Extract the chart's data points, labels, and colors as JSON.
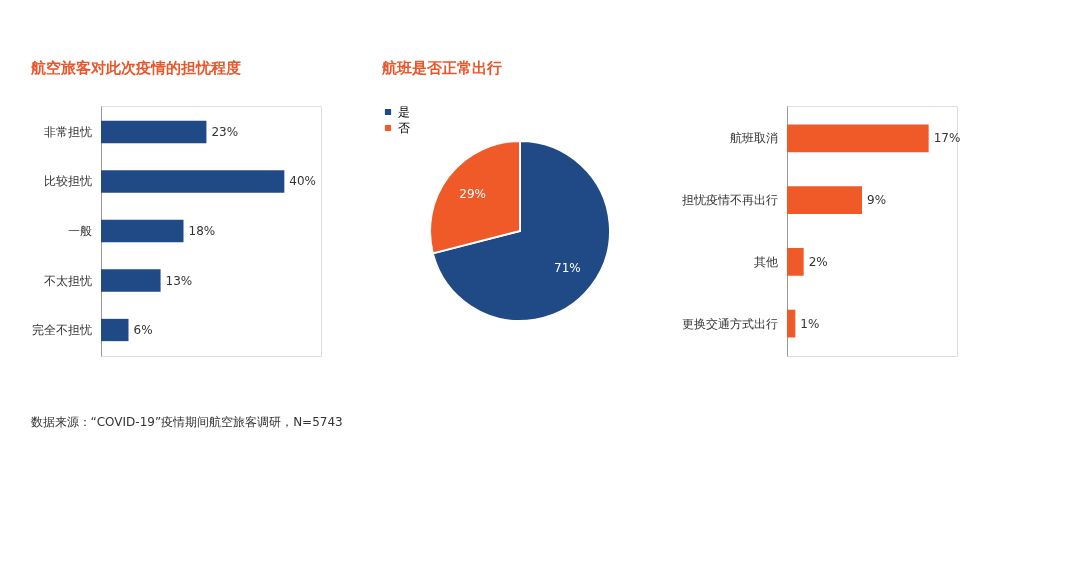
{
  "chart_data": [
    {
      "type": "bar",
      "orientation": "horizontal",
      "title": "航空旅客对此次疫情的担忧程度",
      "categories": [
        "非常担忧",
        "比较担忧",
        "一般",
        "不太担忧",
        "完全不担忧"
      ],
      "values": [
        23,
        40,
        18,
        13,
        6
      ],
      "value_labels": [
        "23%",
        "40%",
        "18%",
        "13%",
        "6%"
      ],
      "color": "#1f4a85",
      "annotations": [
        "数据来源：“COVID-19”疫情期间航空旅客调研，N=5743"
      ]
    },
    {
      "type": "pie",
      "title": "航班是否正常出行",
      "categories": [
        "是",
        "否"
      ],
      "values": [
        71,
        29
      ],
      "value_labels": [
        "71%",
        "29%"
      ],
      "colors": [
        "#1f4a85",
        "#f05a28"
      ],
      "legend": "left"
    },
    {
      "type": "bar",
      "orientation": "horizontal",
      "categories": [
        "航班取消",
        "担忧疫情不再出行",
        "其他",
        "更换交通方式出行"
      ],
      "values": [
        17,
        9,
        2,
        1
      ],
      "value_labels": [
        "17%",
        "9%",
        "2%",
        "1%"
      ],
      "color": "#f05a28"
    }
  ]
}
